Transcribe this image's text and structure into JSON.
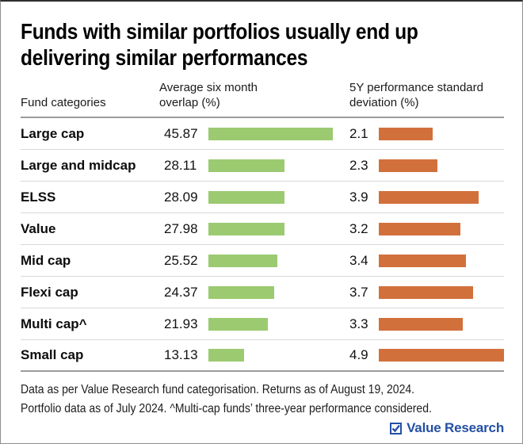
{
  "header": {
    "title": "Funds with similar portfolios usually end up delivering similar performances"
  },
  "table": {
    "headers": [
      "Fund categories",
      "Average six month overlap (%)",
      "5Y performance standard deviation (%)"
    ]
  },
  "chart_data": {
    "type": "bar",
    "title": "Funds with similar portfolios usually end up delivering similar performances",
    "categories": [
      "Large cap",
      "Large and midcap",
      "ELSS",
      "Value",
      "Mid cap",
      "Flexi cap",
      "Multi cap^",
      "Small cap"
    ],
    "series": [
      {
        "name": "Average six month overlap (%)",
        "values": [
          45.87,
          28.11,
          28.09,
          27.98,
          25.52,
          24.37,
          21.93,
          13.13
        ],
        "color": "#9cca70",
        "xlim": [
          0,
          45.87
        ]
      },
      {
        "name": "5Y performance standard deviation (%)",
        "values": [
          2.1,
          2.3,
          3.9,
          3.2,
          3.4,
          3.7,
          3.3,
          4.9
        ],
        "color": "#d2703c",
        "xlim": [
          0,
          4.9
        ]
      }
    ],
    "legend_position": "none",
    "grid": false
  },
  "footer": {
    "line1": "Data as per Value Research fund categorisation. Returns as of August 19, 2024.",
    "line2": "Portfolio data as of July 2024. ^Multi-cap funds’ three-year performance considered."
  },
  "logo": {
    "text": "Value Research",
    "color": "#2450a4"
  },
  "colors": {
    "overlap_bar": "#9cca70",
    "deviation_bar": "#d2703c",
    "logo_blue": "#2450a4"
  }
}
